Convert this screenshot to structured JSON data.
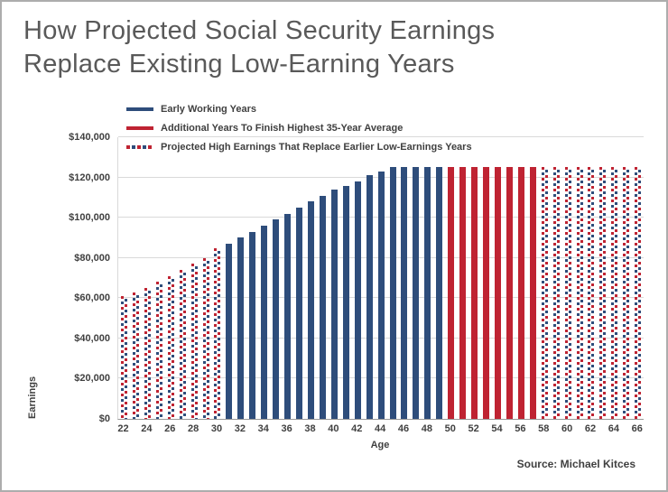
{
  "title": {
    "line1": "How Projected Social Security Earnings",
    "line2": "Replace Existing Low-Earning Years"
  },
  "legend": [
    {
      "label": "Early Working Years",
      "style": "blue"
    },
    {
      "label": "Additional Years To Finish Highest 35-Year Average",
      "style": "red"
    },
    {
      "label": "Projected High Earnings That Replace Earlier Low-Earnings Years",
      "style": "dashed"
    }
  ],
  "source": "Source: Michael Kitces",
  "colors": {
    "blue": "#2e4d7b",
    "red": "#bf2332",
    "title": "#595959",
    "text": "#404040",
    "grid": "#d9d9d9"
  },
  "chart_data": {
    "type": "bar",
    "title": "How Projected Social Security Earnings Replace Existing Low-Earning Years",
    "xlabel": "Age",
    "ylabel": "Earnings",
    "ylim": [
      0,
      140000
    ],
    "grid": "horizontal",
    "legend_position": "top-left",
    "ytick_labels": [
      "$0",
      "$20,000",
      "$40,000",
      "$60,000",
      "$80,000",
      "$100,000",
      "$120,000",
      "$140,000"
    ],
    "xtick_labels": [
      "22",
      "24",
      "26",
      "28",
      "30",
      "32",
      "34",
      "36",
      "38",
      "40",
      "42",
      "44",
      "46",
      "48",
      "50",
      "52",
      "54",
      "56",
      "58",
      "60",
      "62",
      "64",
      "66"
    ],
    "bars": [
      {
        "age": 22,
        "value": 61000,
        "style": "dashed"
      },
      {
        "age": 23,
        "value": 63000,
        "style": "dashed"
      },
      {
        "age": 24,
        "value": 65000,
        "style": "dashed"
      },
      {
        "age": 25,
        "value": 68000,
        "style": "dashed"
      },
      {
        "age": 26,
        "value": 71000,
        "style": "dashed"
      },
      {
        "age": 27,
        "value": 74000,
        "style": "dashed"
      },
      {
        "age": 28,
        "value": 77000,
        "style": "dashed"
      },
      {
        "age": 29,
        "value": 80000,
        "style": "dashed"
      },
      {
        "age": 30,
        "value": 85000,
        "style": "dashed"
      },
      {
        "age": 31,
        "value": 87000,
        "style": "blue"
      },
      {
        "age": 32,
        "value": 90000,
        "style": "blue"
      },
      {
        "age": 33,
        "value": 93000,
        "style": "blue"
      },
      {
        "age": 34,
        "value": 96000,
        "style": "blue"
      },
      {
        "age": 35,
        "value": 99000,
        "style": "blue"
      },
      {
        "age": 36,
        "value": 102000,
        "style": "blue"
      },
      {
        "age": 37,
        "value": 105000,
        "style": "blue"
      },
      {
        "age": 38,
        "value": 108000,
        "style": "blue"
      },
      {
        "age": 39,
        "value": 111000,
        "style": "blue"
      },
      {
        "age": 40,
        "value": 114000,
        "style": "blue"
      },
      {
        "age": 41,
        "value": 116000,
        "style": "blue"
      },
      {
        "age": 42,
        "value": 118000,
        "style": "blue"
      },
      {
        "age": 43,
        "value": 121000,
        "style": "blue"
      },
      {
        "age": 44,
        "value": 123000,
        "style": "blue"
      },
      {
        "age": 45,
        "value": 125000,
        "style": "blue"
      },
      {
        "age": 46,
        "value": 125000,
        "style": "blue"
      },
      {
        "age": 47,
        "value": 125000,
        "style": "blue"
      },
      {
        "age": 48,
        "value": 125000,
        "style": "blue"
      },
      {
        "age": 49,
        "value": 125000,
        "style": "blue"
      },
      {
        "age": 50,
        "value": 125000,
        "style": "red"
      },
      {
        "age": 51,
        "value": 125000,
        "style": "red"
      },
      {
        "age": 52,
        "value": 125000,
        "style": "red"
      },
      {
        "age": 53,
        "value": 125000,
        "style": "red"
      },
      {
        "age": 54,
        "value": 125000,
        "style": "red"
      },
      {
        "age": 55,
        "value": 125000,
        "style": "red"
      },
      {
        "age": 56,
        "value": 125000,
        "style": "red"
      },
      {
        "age": 57,
        "value": 125000,
        "style": "red"
      },
      {
        "age": 58,
        "value": 125000,
        "style": "dashed"
      },
      {
        "age": 59,
        "value": 125000,
        "style": "dashed"
      },
      {
        "age": 60,
        "value": 125000,
        "style": "dashed"
      },
      {
        "age": 61,
        "value": 125000,
        "style": "dashed"
      },
      {
        "age": 62,
        "value": 125000,
        "style": "dashed"
      },
      {
        "age": 63,
        "value": 125000,
        "style": "dashed"
      },
      {
        "age": 64,
        "value": 125000,
        "style": "dashed"
      },
      {
        "age": 65,
        "value": 125000,
        "style": "dashed"
      },
      {
        "age": 66,
        "value": 125000,
        "style": "dashed"
      }
    ]
  }
}
